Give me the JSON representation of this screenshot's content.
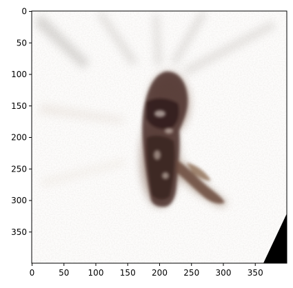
{
  "figure": {
    "image_description_icon": "reconstructed-figure-image",
    "x_axis": {
      "ticks": [
        "0",
        "50",
        "100",
        "150",
        "200",
        "250",
        "300",
        "350"
      ],
      "tick_values": [
        0,
        50,
        100,
        150,
        200,
        250,
        300,
        350
      ],
      "range": [
        0,
        400
      ]
    },
    "y_axis": {
      "ticks": [
        "0",
        "50",
        "100",
        "150",
        "200",
        "250",
        "300",
        "350"
      ],
      "tick_values": [
        0,
        50,
        100,
        150,
        200,
        250,
        300,
        350
      ],
      "range": [
        0,
        400
      ],
      "inverted": true
    },
    "colors": {
      "figure_dark": "#3a2420",
      "figure_mid": "#6b4a3c",
      "figure_light": "#a88a70",
      "background_speckle": "#b9b3ad",
      "corner": "#000000"
    }
  }
}
